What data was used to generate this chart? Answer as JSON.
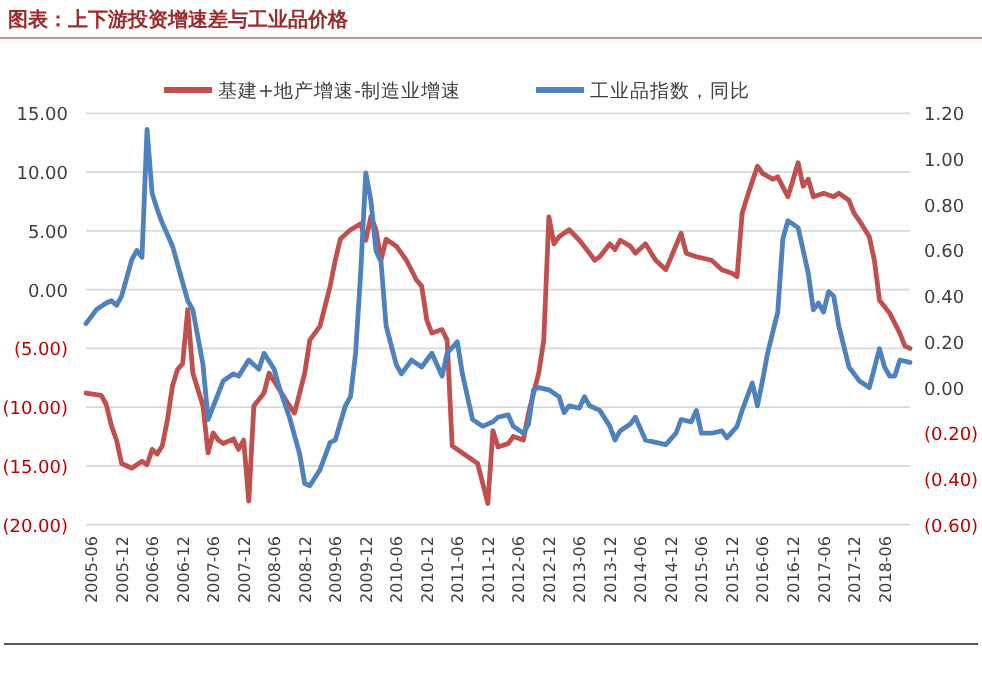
{
  "chart_data": {
    "type": "line",
    "title": "图表：上下游投资增速差与工业品价格",
    "xlim": [
      "2005-05",
      "2018-11"
    ],
    "xticks": [
      "2005-06",
      "2005-12",
      "2006-06",
      "2006-12",
      "2007-06",
      "2007-12",
      "2008-06",
      "2008-12",
      "2009-06",
      "2009-12",
      "2010-06",
      "2010-12",
      "2011-06",
      "2011-12",
      "2012-06",
      "2012-12",
      "2013-06",
      "2013-12",
      "2014-06",
      "2014-12",
      "2015-06",
      "2015-12",
      "2016-06",
      "2016-12",
      "2017-06",
      "2017-12",
      "2018-06"
    ],
    "ylim": [
      -20,
      15
    ],
    "yticks": [
      {
        "value": 15,
        "label": "15.00"
      },
      {
        "value": 10,
        "label": "10.00"
      },
      {
        "value": 5,
        "label": "5.00"
      },
      {
        "value": 0,
        "label": "0.00"
      },
      {
        "value": -5,
        "label": "(5.00)"
      },
      {
        "value": -10,
        "label": "(10.00)"
      },
      {
        "value": -15,
        "label": "(15.00)"
      },
      {
        "value": -20,
        "label": "(20.00)"
      }
    ],
    "y2lim": [
      -0.6,
      1.2
    ],
    "y2ticks": [
      {
        "value": 1.2,
        "label": "1.20"
      },
      {
        "value": 1.0,
        "label": "1.00"
      },
      {
        "value": 0.8,
        "label": "0.80"
      },
      {
        "value": 0.6,
        "label": "0.60"
      },
      {
        "value": 0.4,
        "label": "0.40"
      },
      {
        "value": 0.2,
        "label": "0.20"
      },
      {
        "value": 0,
        "label": "0.00"
      },
      {
        "value": -0.2,
        "label": "(0.20)"
      },
      {
        "value": -0.4,
        "label": "(0.40)"
      },
      {
        "value": -0.6,
        "label": "(0.60)"
      }
    ],
    "grid": "y",
    "legend": "top",
    "series": [
      {
        "name": "基建+地产增速-制造业增速",
        "color": "#c0504d",
        "x": [
          "2005-05",
          "2005-08",
          "2005-09",
          "2005-10",
          "2005-11",
          "2005-12",
          "2006-02",
          "2006-04",
          "2006-05",
          "2006-06",
          "2006-07",
          "2006-08",
          "2006-09",
          "2006-10",
          "2006-11",
          "2006-12",
          "2007-01",
          "2007-02",
          "2007-04",
          "2007-05",
          "2007-06",
          "2007-07",
          "2007-08",
          "2007-10",
          "2007-11",
          "2007-12",
          "2008-01",
          "2008-02",
          "2008-04",
          "2008-05",
          "2008-07",
          "2008-09",
          "2008-10",
          "2008-12",
          "2009-01",
          "2009-03",
          "2009-05",
          "2009-06",
          "2009-07",
          "2009-09",
          "2009-11",
          "2009-12",
          "2010-01",
          "2010-02",
          "2010-03",
          "2010-04",
          "2010-06",
          "2010-08",
          "2010-10",
          "2010-11",
          "2010-12",
          "2011-01",
          "2011-03",
          "2011-04",
          "2011-05",
          "2011-07",
          "2011-10",
          "2011-12",
          "2012-01",
          "2012-02",
          "2012-04",
          "2012-05",
          "2012-07",
          "2012-08",
          "2012-09",
          "2012-10",
          "2012-11",
          "2012-12",
          "2013-01",
          "2013-02",
          "2013-04",
          "2013-06",
          "2013-08",
          "2013-09",
          "2013-10",
          "2013-12",
          "2014-01",
          "2014-02",
          "2014-04",
          "2014-05",
          "2014-07",
          "2014-09",
          "2014-11",
          "2015-02",
          "2015-03",
          "2015-05",
          "2015-08",
          "2015-10",
          "2015-12",
          "2016-01",
          "2016-02",
          "2016-03",
          "2016-05",
          "2016-06",
          "2016-08",
          "2016-09",
          "2016-11",
          "2017-01",
          "2017-02",
          "2017-03",
          "2017-04",
          "2017-06",
          "2017-08",
          "2017-09",
          "2017-11",
          "2017-12",
          "2018-01",
          "2018-03",
          "2018-04",
          "2018-05",
          "2018-07",
          "2018-09",
          "2018-10",
          "2018-11"
        ],
        "values": [
          -8.8,
          -9.0,
          -9.8,
          -11.6,
          -12.8,
          -14.8,
          -15.2,
          -14.6,
          -14.9,
          -13.6,
          -14.0,
          -13.3,
          -11.1,
          -8.2,
          -6.8,
          -6.3,
          -1.7,
          -7.1,
          -9.9,
          -13.9,
          -12.2,
          -12.8,
          -13.1,
          -12.7,
          -13.6,
          -12.8,
          -18.0,
          -9.9,
          -8.8,
          -7.1,
          -8.5,
          -9.9,
          -10.5,
          -7.1,
          -4.3,
          -3.1,
          0.3,
          2.5,
          4.3,
          5.1,
          5.6,
          4.2,
          6.2,
          5.1,
          2.5,
          4.3,
          3.7,
          2.5,
          0.8,
          0.3,
          -2.6,
          -3.7,
          -3.4,
          -4.3,
          -13.3,
          -13.9,
          -14.8,
          -18.2,
          -12.0,
          -13.4,
          -13.1,
          -12.5,
          -12.8,
          -10.5,
          -8.8,
          -7.1,
          -4.3,
          6.2,
          3.9,
          4.5,
          5.1,
          4.2,
          3.1,
          2.5,
          2.8,
          3.9,
          3.4,
          4.2,
          3.7,
          3.1,
          3.9,
          2.5,
          1.7,
          4.8,
          3.1,
          2.8,
          2.5,
          1.7,
          1.4,
          1.1,
          6.5,
          7.9,
          10.5,
          9.9,
          9.4,
          9.6,
          7.9,
          10.8,
          8.8,
          9.4,
          7.9,
          8.2,
          7.9,
          8.2,
          7.6,
          6.5,
          5.9,
          4.5,
          2.5,
          -0.9,
          -2.0,
          -3.7,
          -4.8,
          -5.0
        ]
      },
      {
        "name": "工业品指数，同比",
        "color": "#4f81bd",
        "axis": "y2",
        "x": [
          "2005-05",
          "2005-07",
          "2005-09",
          "2005-10",
          "2005-11",
          "2005-12",
          "2006-01",
          "2006-02",
          "2006-03",
          "2006-04",
          "2006-05",
          "2006-06",
          "2006-07",
          "2006-08",
          "2006-10",
          "2006-12",
          "2007-01",
          "2007-02",
          "2007-03",
          "2007-04",
          "2007-05",
          "2007-08",
          "2007-10",
          "2007-11",
          "2008-01",
          "2008-03",
          "2008-04",
          "2008-06",
          "2008-07",
          "2008-09",
          "2008-11",
          "2008-12",
          "2009-01",
          "2009-03",
          "2009-05",
          "2009-06",
          "2009-08",
          "2009-09",
          "2009-10",
          "2009-11",
          "2009-12",
          "2010-01",
          "2010-02",
          "2010-03",
          "2010-04",
          "2010-06",
          "2010-07",
          "2010-09",
          "2010-11",
          "2011-01",
          "2011-03",
          "2011-04",
          "2011-06",
          "2011-07",
          "2011-09",
          "2011-11",
          "2012-01",
          "2012-02",
          "2012-04",
          "2012-05",
          "2012-07",
          "2012-08",
          "2012-09",
          "2012-10",
          "2012-12",
          "2013-02",
          "2013-03",
          "2013-04",
          "2013-06",
          "2013-07",
          "2013-08",
          "2013-10",
          "2013-12",
          "2014-01",
          "2014-02",
          "2014-04",
          "2014-05",
          "2014-07",
          "2014-09",
          "2014-11",
          "2015-01",
          "2015-02",
          "2015-04",
          "2015-05",
          "2015-06",
          "2015-08",
          "2015-10",
          "2015-11",
          "2016-01",
          "2016-02",
          "2016-04",
          "2016-05",
          "2016-06",
          "2016-07",
          "2016-08",
          "2016-09",
          "2016-10",
          "2016-11",
          "2017-01",
          "2017-03",
          "2017-04",
          "2017-05",
          "2017-06",
          "2017-07",
          "2017-08",
          "2017-09",
          "2017-11",
          "2018-01",
          "2018-03",
          "2018-05",
          "2018-06",
          "2018-07",
          "2018-08",
          "2018-09",
          "2018-11"
        ],
        "values": [
          0.28,
          0.34,
          0.37,
          0.38,
          0.36,
          0.4,
          0.48,
          0.56,
          0.6,
          0.57,
          1.13,
          0.85,
          0.78,
          0.72,
          0.62,
          0.46,
          0.38,
          0.34,
          0.22,
          0.1,
          -0.14,
          0.03,
          0.06,
          0.05,
          0.12,
          0.08,
          0.15,
          0.08,
          0.0,
          -0.13,
          -0.29,
          -0.42,
          -0.43,
          -0.36,
          -0.24,
          -0.23,
          -0.08,
          -0.04,
          0.15,
          0.5,
          0.94,
          0.82,
          0.6,
          0.55,
          0.27,
          0.1,
          0.06,
          0.12,
          0.09,
          0.15,
          0.05,
          0.15,
          0.2,
          0.06,
          -0.14,
          -0.17,
          -0.15,
          -0.13,
          -0.12,
          -0.17,
          -0.2,
          -0.16,
          -0.01,
          0.0,
          -0.01,
          -0.04,
          -0.11,
          -0.08,
          -0.09,
          -0.04,
          -0.08,
          -0.1,
          -0.17,
          -0.23,
          -0.19,
          -0.16,
          -0.13,
          -0.23,
          -0.24,
          -0.25,
          -0.2,
          -0.14,
          -0.15,
          -0.1,
          -0.2,
          -0.2,
          -0.19,
          -0.22,
          -0.17,
          -0.1,
          0.02,
          -0.08,
          0.03,
          0.15,
          0.24,
          0.33,
          0.65,
          0.73,
          0.7,
          0.5,
          0.34,
          0.37,
          0.33,
          0.42,
          0.4,
          0.27,
          0.09,
          0.03,
          0.0,
          0.17,
          0.09,
          0.05,
          0.05,
          0.12,
          0.11
        ]
      }
    ]
  }
}
